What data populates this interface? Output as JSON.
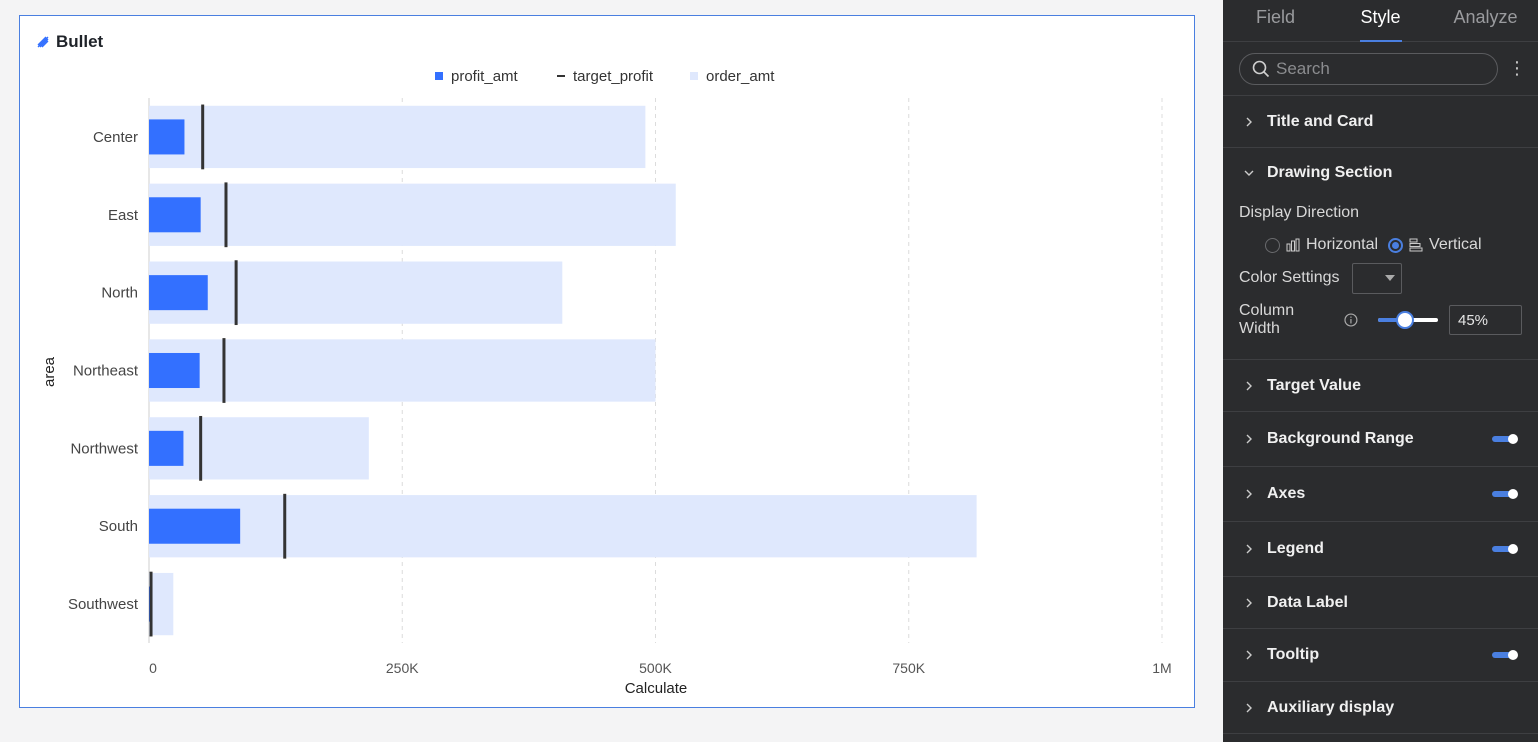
{
  "card": {
    "title": "Bullet"
  },
  "legend": {
    "items": [
      "profit_amt",
      "target_profit",
      "order_amt"
    ]
  },
  "colors": {
    "actual": "#3370ff",
    "target": "#333333",
    "range": "#dfe8fd",
    "accent": "#4a7fe0"
  },
  "chart_data": {
    "type": "bar",
    "subtype": "bullet",
    "orientation": "horizontal",
    "title": "Bullet",
    "categories": [
      "Center",
      "East",
      "North",
      "Northeast",
      "Northwest",
      "South",
      "Southwest"
    ],
    "series": [
      {
        "name": "profit_amt",
        "values": [
          35000,
          51000,
          58000,
          50000,
          34000,
          90000,
          2000
        ]
      },
      {
        "name": "target_profit",
        "values": [
          53000,
          76000,
          86000,
          74000,
          51000,
          134000,
          2000
        ]
      },
      {
        "name": "order_amt",
        "values": [
          490000,
          520000,
          408000,
          500000,
          217000,
          817000,
          24000
        ]
      }
    ],
    "xlabel": "Calculate",
    "ylabel": "area",
    "xlim": [
      0,
      1000000
    ],
    "xticks": [
      "0",
      "250K",
      "500K",
      "750K",
      "1M"
    ],
    "grid": "vertical-dashed",
    "legend_position": "top-center"
  },
  "panel": {
    "tabs": [
      {
        "label": "Field",
        "active": false
      },
      {
        "label": "Style",
        "active": true
      },
      {
        "label": "Analyze",
        "active": false
      }
    ],
    "search_placeholder": "Search",
    "sections": {
      "title_card": "Title and Card",
      "drawing": {
        "label": "Drawing Section",
        "display_direction": "Display Direction",
        "horizontal": "Horizontal",
        "vertical": "Vertical",
        "selected": "vertical",
        "color_settings": "Color Settings",
        "column_width": "Column Width",
        "column_width_value": "45%",
        "column_width_fraction": 0.45
      },
      "target_value": "Target Value",
      "background_range": "Background Range",
      "axes": "Axes",
      "legend": "Legend",
      "data_label": "Data Label",
      "tooltip": "Tooltip",
      "auxiliary": "Auxiliary display"
    }
  }
}
